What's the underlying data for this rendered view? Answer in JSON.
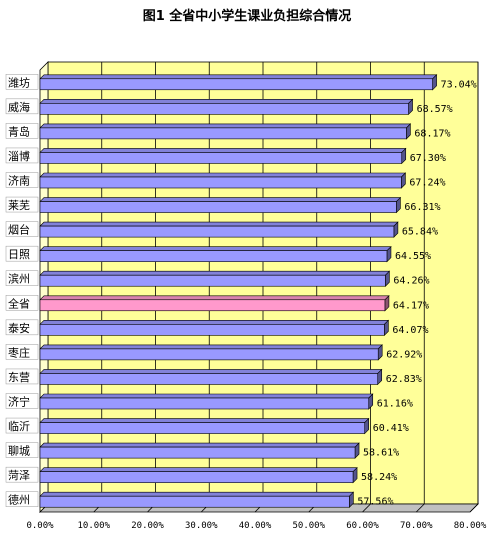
{
  "chart_data": {
    "type": "bar",
    "orientation": "horizontal",
    "title": "图1 全省中小学生课业负担综合情况",
    "categories": [
      "潍坊",
      "威海",
      "青岛",
      "淄博",
      "济南",
      "莱芜",
      "烟台",
      "日照",
      "滨州",
      "全省",
      "泰安",
      "枣庄",
      "东营",
      "济宁",
      "临沂",
      "聊城",
      "菏泽",
      "德州"
    ],
    "values": [
      73.04,
      68.57,
      68.17,
      67.3,
      67.24,
      66.31,
      65.84,
      64.55,
      64.26,
      64.17,
      64.07,
      62.92,
      62.83,
      61.16,
      60.41,
      58.61,
      58.24,
      57.56
    ],
    "value_labels": [
      "73.04%",
      "68.57%",
      "68.17%",
      "67.30%",
      "67.24%",
      "66.31%",
      "65.84%",
      "64.55%",
      "64.26%",
      "64.17%",
      "64.07%",
      "62.92%",
      "62.83%",
      "61.16%",
      "60.41%",
      "58.61%",
      "58.24%",
      "57.56%"
    ],
    "highlight_category": "全省",
    "xlim": [
      0,
      80
    ],
    "x_ticks": [
      "0.00%",
      "10.00%",
      "20.00%",
      "30.00%",
      "40.00%",
      "50.00%",
      "60.00%",
      "70.00%",
      "80.00%"
    ],
    "grid": true,
    "legend": false,
    "colors": {
      "bar": "#9999ff",
      "bar_highlight": "#ff99cc",
      "plot_background": "#ffff99",
      "wall_back": "#ffffcc",
      "gridline": "#000000",
      "outline": "#000000"
    }
  }
}
